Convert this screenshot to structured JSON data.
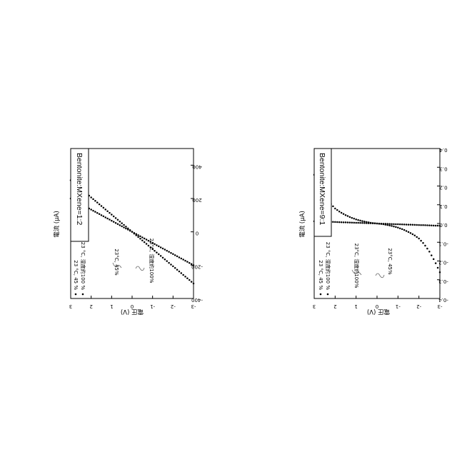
{
  "chart_data": [
    {
      "type": "scatter",
      "title": "Bentonite:MXene=9:1",
      "xlabel": "電圧 (V)",
      "ylabel": "電流 (μA)",
      "xlim": [
        -3,
        3
      ],
      "ylim": [
        -0.4,
        0.4
      ],
      "x_ticks": [
        "-3",
        "-2",
        "-1",
        "0",
        "1",
        "2",
        "3"
      ],
      "y_ticks": [
        "-0.4",
        "-0.3",
        "-0.2",
        "-0.1",
        "0.0",
        "0.1",
        "0.2",
        "0.3",
        "0.4"
      ],
      "legend": [
        "23 °C, 45 %",
        "23 °C, 湿度約100 %"
      ],
      "legend_position": "top-left",
      "annotations": [
        "23°C, 湿度約100%",
        "23°C, 45%"
      ],
      "grid": false,
      "series": [
        {
          "name": "23 °C, 45 %",
          "x": [
            -3.0,
            -2.5,
            -2.0,
            -1.5,
            -1.0,
            -0.5,
            0.0,
            0.5,
            1.0,
            1.5,
            2.0,
            2.5,
            3.0
          ],
          "y": [
            -0.012,
            -0.01,
            -0.008,
            -0.006,
            -0.004,
            -0.002,
            0.0,
            0.002,
            0.004,
            0.006,
            0.008,
            0.01,
            0.012
          ]
        },
        {
          "name": "23 °C, 湿度約100 %",
          "x": [
            -3.0,
            -2.75,
            -2.5,
            -2.25,
            -2.0,
            -1.75,
            -1.5,
            -1.25,
            -1.0,
            -0.75,
            -0.5,
            -0.25,
            0.0,
            0.25,
            0.5,
            0.75,
            1.0,
            1.25,
            1.5,
            1.75,
            2.0,
            2.25,
            2.5,
            2.75,
            3.0
          ],
          "y": [
            -0.26,
            -0.2,
            -0.15,
            -0.11,
            -0.08,
            -0.06,
            -0.045,
            -0.032,
            -0.022,
            -0.014,
            -0.008,
            -0.003,
            0.0,
            0.003,
            0.008,
            0.014,
            0.022,
            0.032,
            0.045,
            0.06,
            0.08,
            0.11,
            0.15,
            0.2,
            0.26
          ]
        }
      ]
    },
    {
      "type": "scatter",
      "title": "Bentonite:MXene=1:2",
      "xlabel": "電圧 (V)",
      "ylabel": "電流 (μA)",
      "xlim": [
        -3,
        3
      ],
      "ylim": [
        -400,
        500
      ],
      "x_ticks": [
        "-3",
        "-2",
        "-1",
        "0",
        "1",
        "2",
        "3"
      ],
      "y_ticks": [
        "-400",
        "-200",
        "0",
        "200",
        "400"
      ],
      "legend": [
        "23 °C, 45 %",
        "23 °C, 湿度約100 %"
      ],
      "legend_position": "top-left",
      "annotations": [
        "23°C, 45%",
        "23°C, 湿度約100%"
      ],
      "grid": false,
      "series": [
        {
          "name": "23 °C, 45 %",
          "x": [
            -3.0,
            0.0,
            3.0
          ],
          "y": [
            -310,
            0,
            310
          ]
        },
        {
          "name": "23 °C, 湿度約100 %",
          "x": [
            -3.0,
            0.0,
            3.0
          ],
          "y": [
            -200,
            0,
            200
          ]
        }
      ]
    }
  ]
}
